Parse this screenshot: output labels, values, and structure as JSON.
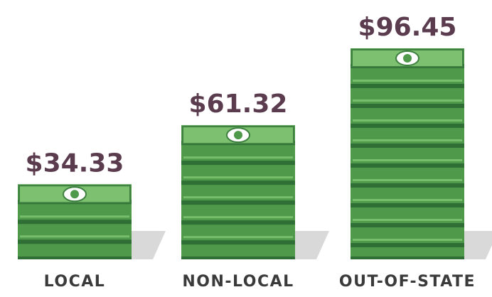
{
  "chart_data": {
    "type": "bar",
    "categories": [
      "LOCAL",
      "NON-LOCAL",
      "OUT-OF-STATE"
    ],
    "values": [
      34.33,
      61.32,
      96.45
    ],
    "value_labels": [
      "$34.33",
      "$61.32",
      "$96.45"
    ],
    "color": "#4f9a4a"
  }
}
